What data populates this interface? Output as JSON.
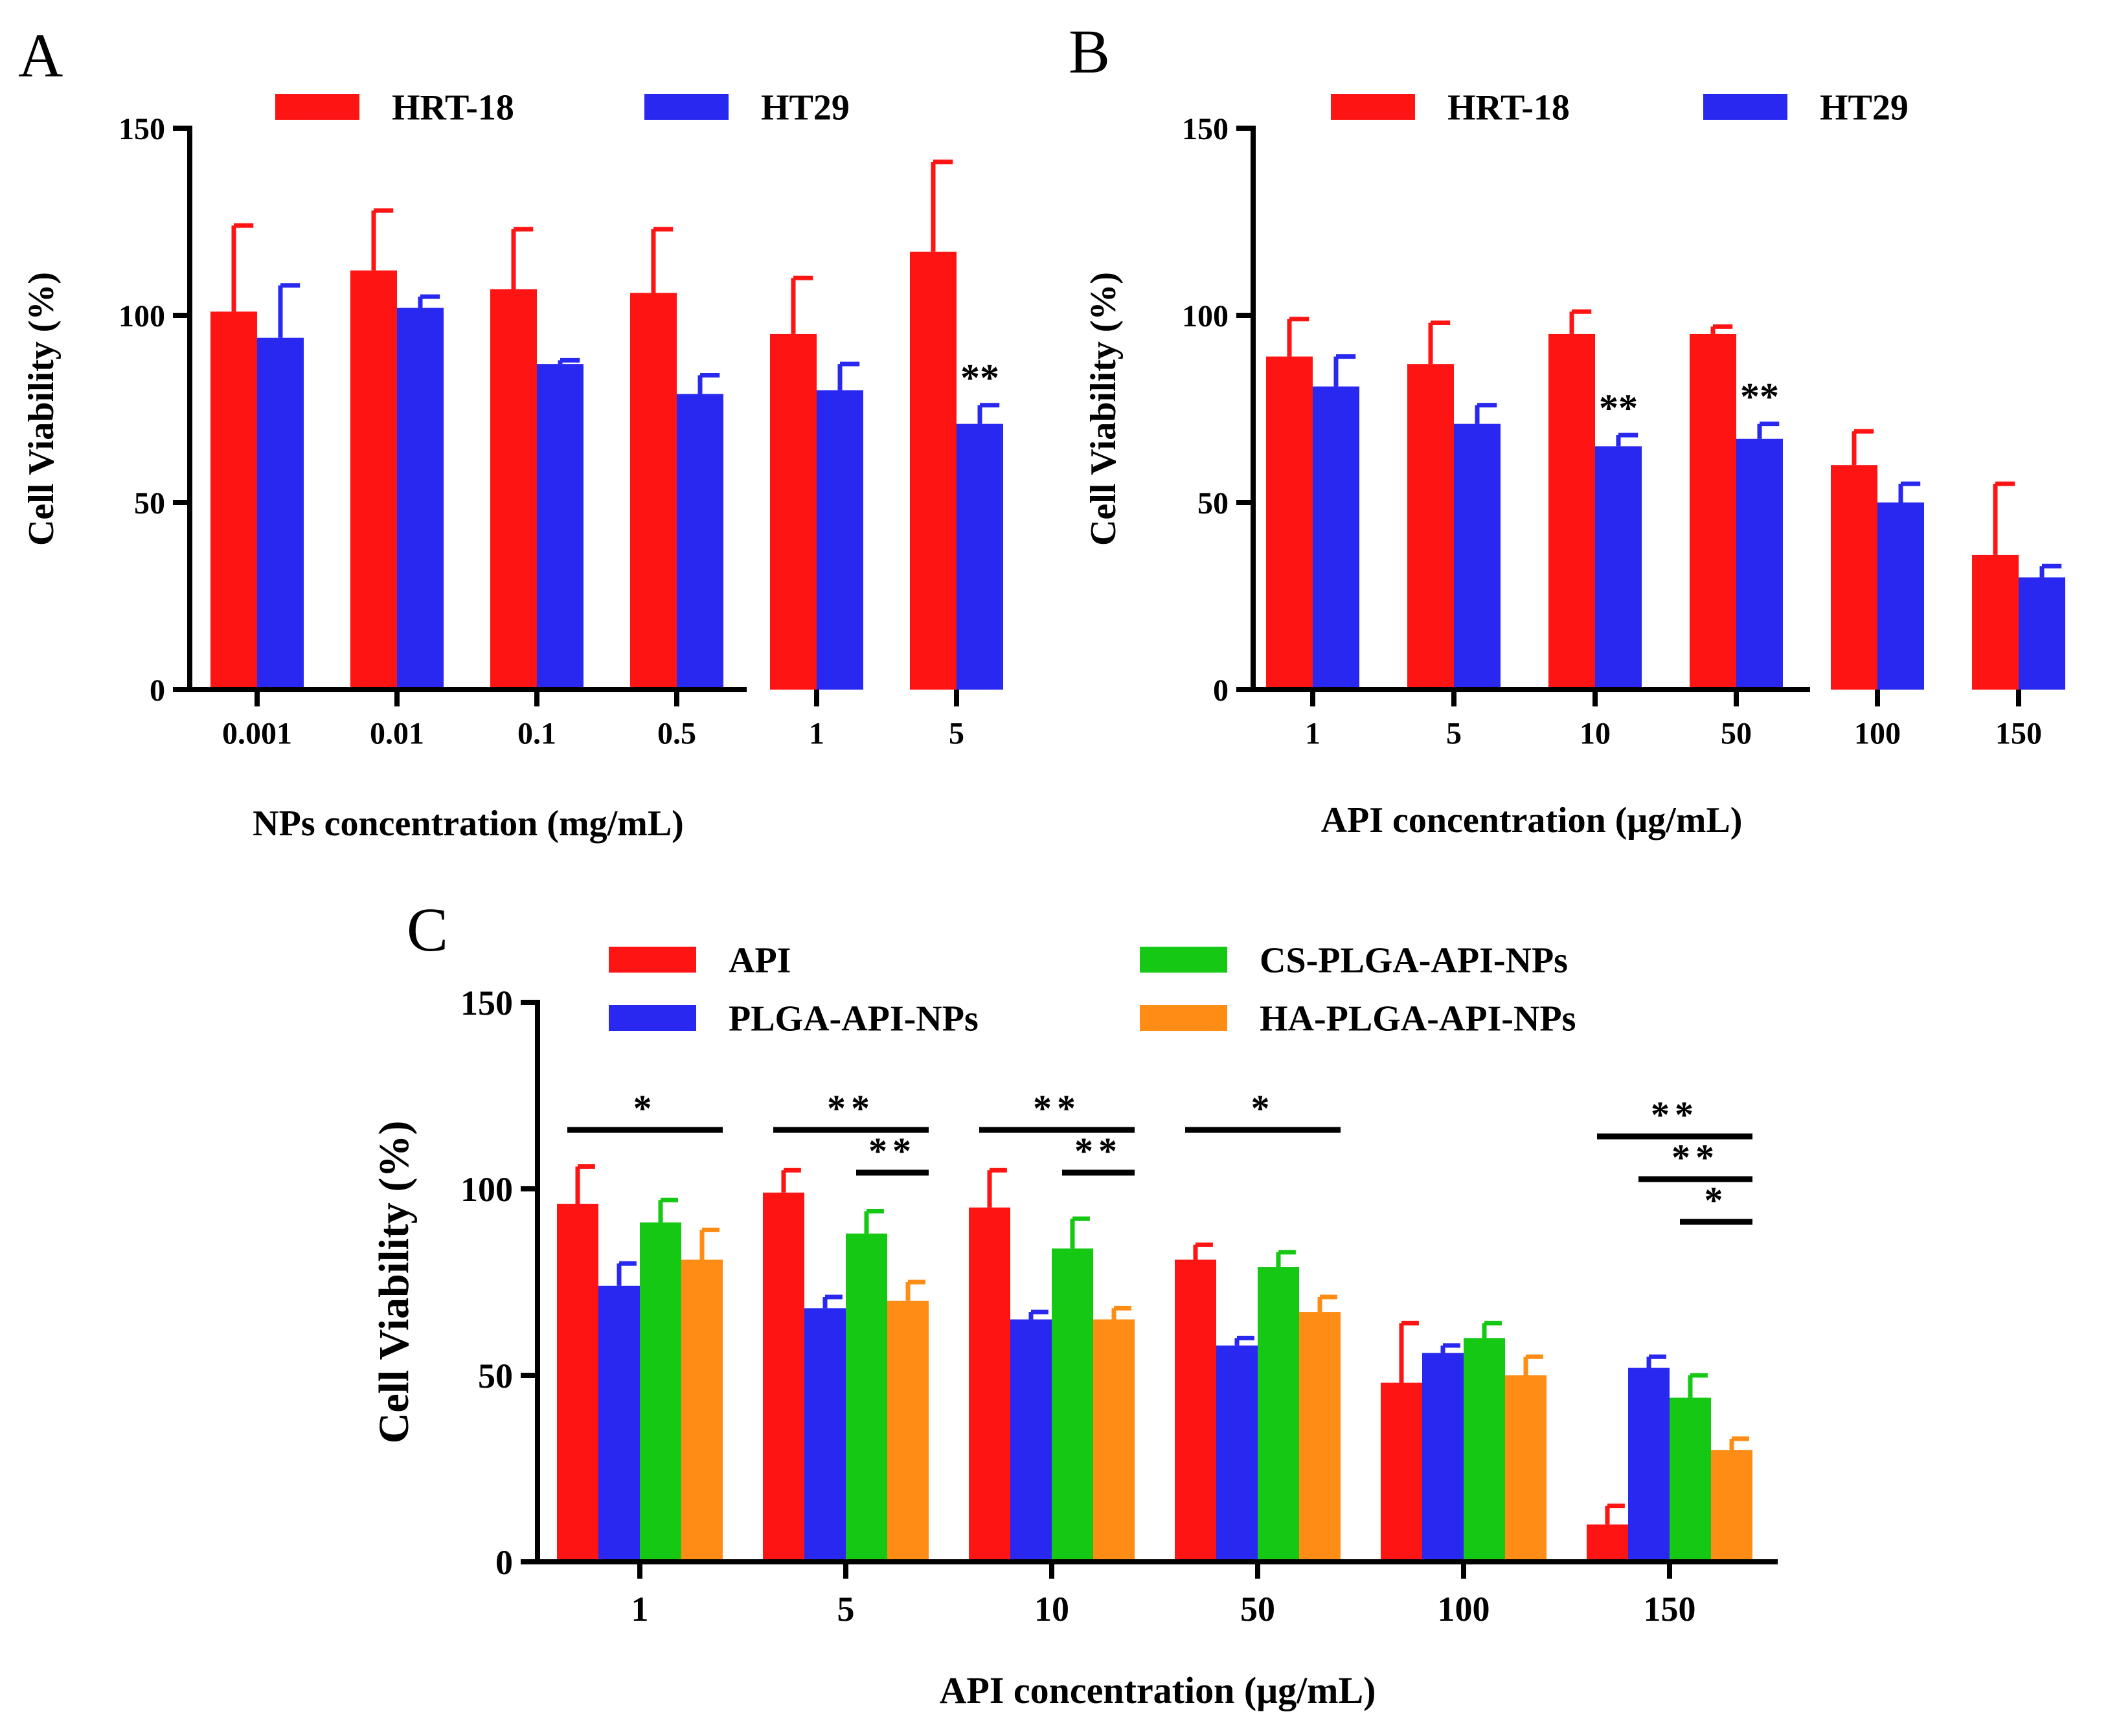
{
  "colors": {
    "red": "#ff1414",
    "blue": "#2828f0",
    "green": "#14c814",
    "orange": "#ff8c14",
    "axis": "#000000"
  },
  "chart_data": [
    {
      "panel": "A",
      "type": "bar",
      "categories": [
        "0.001",
        "0.01",
        "0.1",
        "0.5",
        "1",
        "5"
      ],
      "xlabel": "NPs concentration (mg/mL)",
      "ylabel": "Cell Viability (%)",
      "ylim": [
        0,
        150
      ],
      "yticks": [
        "0",
        "50",
        "100",
        "150"
      ],
      "legend_position": "top",
      "series": [
        {
          "name": "HRT-18",
          "color": "red",
          "values": [
            101,
            112,
            107,
            106,
            95,
            117
          ],
          "errors": [
            23,
            16,
            16,
            17,
            15,
            24
          ]
        },
        {
          "name": "HT29",
          "color": "blue",
          "values": [
            94,
            102,
            87,
            79,
            80,
            71
          ],
          "errors": [
            14,
            3,
            1,
            5,
            7,
            5
          ]
        }
      ],
      "annotations": [
        {
          "text": "**",
          "category_index": 5,
          "series_index": 1
        }
      ]
    },
    {
      "panel": "B",
      "type": "bar",
      "categories": [
        "1",
        "5",
        "10",
        "50",
        "100",
        "150"
      ],
      "xlabel": "API concentration (μg/mL)",
      "ylabel": "Cell Viability (%)",
      "ylim": [
        0,
        150
      ],
      "yticks": [
        "0",
        "50",
        "100",
        "150"
      ],
      "legend_position": "top",
      "series": [
        {
          "name": "HRT-18",
          "color": "red",
          "values": [
            89,
            87,
            95,
            95,
            60,
            36
          ],
          "errors": [
            10,
            11,
            6,
            2,
            9,
            19
          ]
        },
        {
          "name": "HT29",
          "color": "blue",
          "values": [
            81,
            71,
            65,
            67,
            50,
            30
          ],
          "errors": [
            8,
            5,
            3,
            4,
            5,
            3
          ]
        }
      ],
      "annotations": [
        {
          "text": "**",
          "category_index": 2,
          "series_index": 1
        },
        {
          "text": "**",
          "category_index": 3,
          "series_index": 1
        }
      ]
    },
    {
      "panel": "C",
      "type": "bar",
      "categories": [
        "1",
        "5",
        "10",
        "50",
        "100",
        "150"
      ],
      "xlabel": "API concentration (μg/mL)",
      "ylabel": "Cell Viability (%)",
      "ylim": [
        0,
        150
      ],
      "yticks": [
        "0",
        "50",
        "100",
        "150"
      ],
      "legend_position": "top",
      "series": [
        {
          "name": "API",
          "color": "red",
          "values": [
            96,
            99,
            95,
            81,
            48,
            10
          ],
          "errors": [
            10,
            6,
            10,
            4,
            16,
            5
          ]
        },
        {
          "name": "PLGA-API-NPs",
          "color": "blue",
          "values": [
            74,
            68,
            65,
            58,
            56,
            52
          ],
          "errors": [
            6,
            3,
            2,
            2,
            2,
            3
          ]
        },
        {
          "name": "CS-PLGA-API-NPs",
          "color": "green",
          "values": [
            91,
            88,
            84,
            79,
            60,
            44
          ],
          "errors": [
            6,
            6,
            8,
            4,
            4,
            6
          ]
        },
        {
          "name": "HA-PLGA-API-NPs",
          "color": "orange",
          "values": [
            81,
            70,
            65,
            67,
            50,
            30
          ],
          "errors": [
            8,
            5,
            3,
            4,
            5,
            3
          ]
        }
      ],
      "significance": [
        {
          "text": "*",
          "category_index": 0,
          "from_series": 0,
          "to_series": 3,
          "level": 0
        },
        {
          "text": "**",
          "category_index": 1,
          "from_series": 0,
          "to_series": 3,
          "level": 0
        },
        {
          "text": "**",
          "category_index": 1,
          "from_series": 2,
          "to_series": 3,
          "level": 1
        },
        {
          "text": "**",
          "category_index": 2,
          "from_series": 0,
          "to_series": 3,
          "level": 0
        },
        {
          "text": "**",
          "category_index": 2,
          "from_series": 2,
          "to_series": 3,
          "level": 1
        },
        {
          "text": "*",
          "category_index": 3,
          "from_series": 0,
          "to_series": 3,
          "level": 0
        },
        {
          "text": "**",
          "category_index": 5,
          "from_series": 0,
          "to_series": 3,
          "level": 0
        },
        {
          "text": "**",
          "category_index": 5,
          "from_series": 1,
          "to_series": 3,
          "level": 1
        },
        {
          "text": "*",
          "category_index": 5,
          "from_series": 2,
          "to_series": 3,
          "level": 2
        }
      ]
    }
  ]
}
